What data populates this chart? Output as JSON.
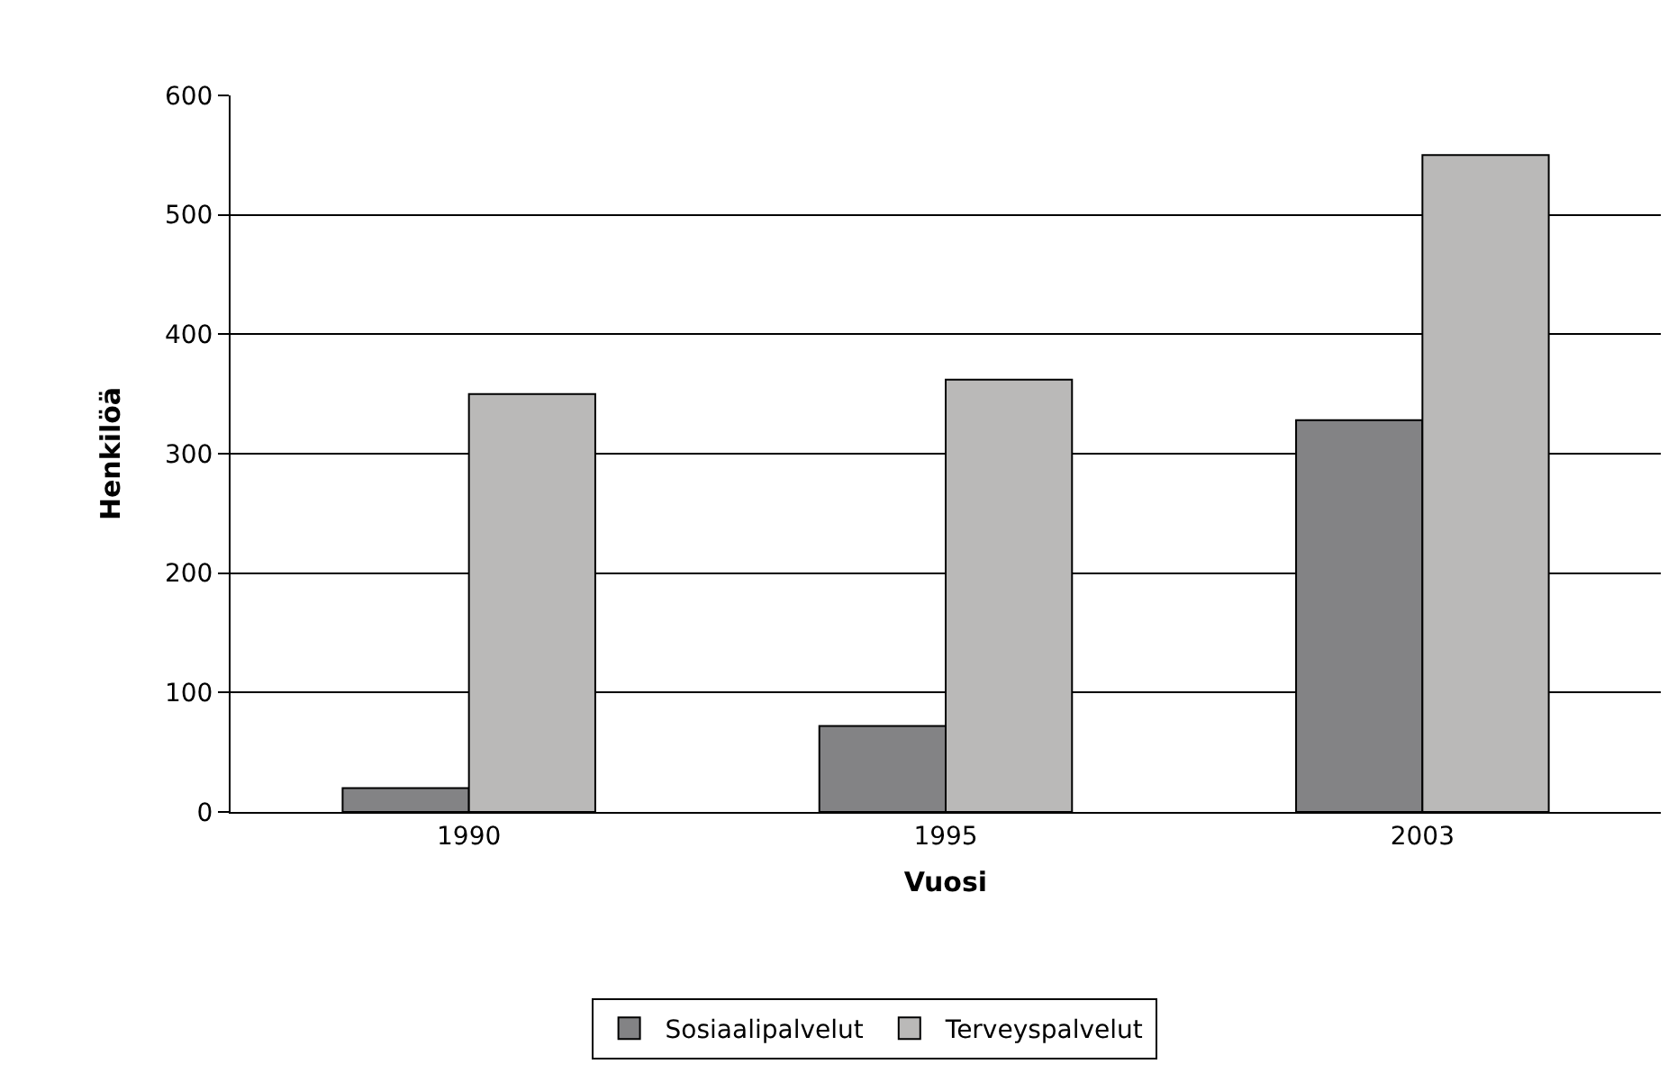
{
  "chart_data": {
    "type": "bar",
    "categories": [
      "1990",
      "1995",
      "2003"
    ],
    "xlabel": "Vuosi",
    "ylabel": "Henkilöä",
    "series": [
      {
        "name": "Sosiaalipalvelut",
        "color": "#838385",
        "values": [
          20,
          72,
          328
        ]
      },
      {
        "name": "Terveyspalvelut",
        "color": "#bab9b8",
        "values": [
          350,
          362,
          550
        ]
      }
    ],
    "ylim": [
      0,
      600
    ],
    "yticks": [
      0,
      100,
      200,
      300,
      400,
      500,
      600
    ],
    "grid": "y",
    "legend": "bottom"
  }
}
